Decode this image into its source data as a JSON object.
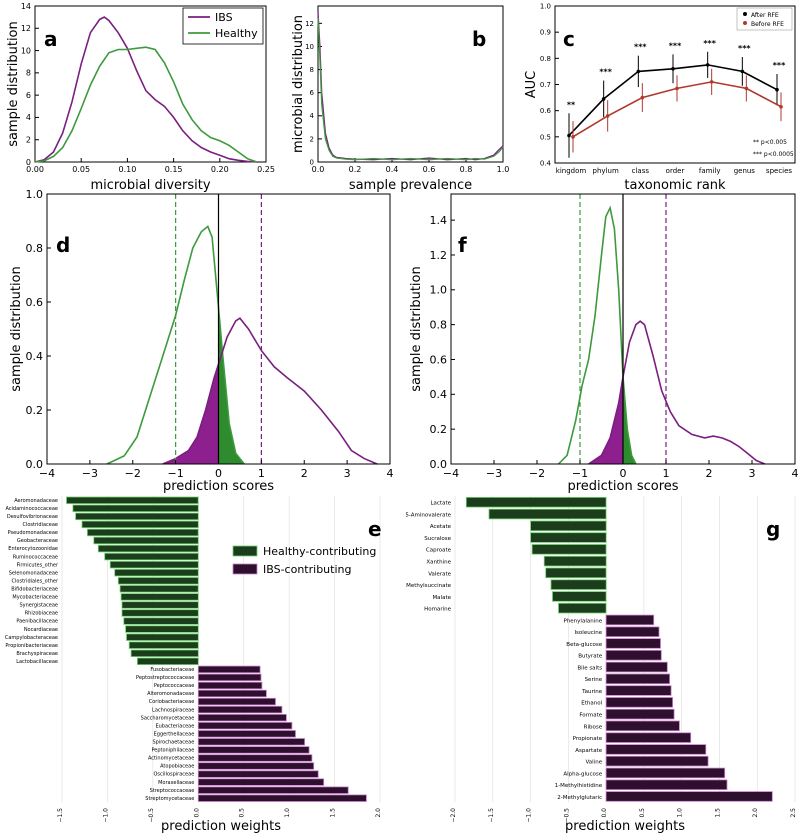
{
  "figure": {
    "colors": {
      "ibs": "#7a1f7f",
      "healthy": "#3d9a3d",
      "ibs_fill": "#8e1f8e",
      "healthy_fill": "#2e8b2e",
      "black": "#000000",
      "bar_healthy": "#1c3d1c",
      "bar_ibs": "#2e0f2e",
      "bar_healthy_edge": "#6fd06f",
      "bar_ibs_edge": "#c87fc8",
      "before_rfe": "#b0392c"
    },
    "panel_labels": {
      "a": "a",
      "b": "b",
      "c": "c",
      "d": "d",
      "e": "e",
      "f": "f",
      "g": "g"
    }
  },
  "chart_data": [
    {
      "id": "a",
      "type": "line",
      "xlabel": "microbial diversity",
      "ylabel": "sample distribution",
      "xlim": [
        0,
        0.25
      ],
      "ylim": [
        0,
        14
      ],
      "xticks": [
        "0.00",
        "0.05",
        "0.10",
        "0.15",
        "0.20",
        "0.25"
      ],
      "yticks": [
        "0",
        "2",
        "4",
        "6",
        "8",
        "10",
        "12",
        "14"
      ],
      "legend": [
        "IBS",
        "Healthy"
      ],
      "legend_position": "top-right",
      "series": [
        {
          "name": "IBS",
          "x": [
            0,
            0.01,
            0.02,
            0.03,
            0.04,
            0.05,
            0.06,
            0.07,
            0.075,
            0.08,
            0.09,
            0.1,
            0.11,
            0.12,
            0.13,
            0.14,
            0.15,
            0.16,
            0.17,
            0.18,
            0.19,
            0.2,
            0.21,
            0.22,
            0.23,
            0.24
          ],
          "y": [
            0,
            0.2,
            0.9,
            2.6,
            5.4,
            8.8,
            11.6,
            12.8,
            13.0,
            12.7,
            11.6,
            10.2,
            8.2,
            6.4,
            5.6,
            5.0,
            4.0,
            2.8,
            1.9,
            1.3,
            0.9,
            0.6,
            0.3,
            0.15,
            0.05,
            0
          ]
        },
        {
          "name": "Healthy",
          "x": [
            0,
            0.01,
            0.02,
            0.03,
            0.04,
            0.05,
            0.06,
            0.07,
            0.08,
            0.09,
            0.1,
            0.11,
            0.12,
            0.13,
            0.14,
            0.15,
            0.16,
            0.17,
            0.18,
            0.19,
            0.2,
            0.21,
            0.22,
            0.23,
            0.24
          ],
          "y": [
            0,
            0.1,
            0.5,
            1.3,
            2.8,
            4.8,
            6.9,
            8.6,
            9.8,
            10.1,
            10.1,
            10.2,
            10.3,
            10.1,
            8.9,
            7.2,
            5.2,
            3.8,
            2.8,
            2.2,
            1.9,
            1.5,
            0.9,
            0.3,
            0
          ]
        }
      ]
    },
    {
      "id": "b",
      "type": "line",
      "xlabel": "sample prevalence",
      "ylabel": "microbial distribution",
      "xlim": [
        0,
        1.0
      ],
      "ylim": [
        0,
        13.5
      ],
      "xticks": [
        "0.0",
        "0.2",
        "0.4",
        "0.6",
        "0.8",
        "1.0"
      ],
      "yticks": [
        "0",
        "2",
        "4",
        "6",
        "8",
        "10",
        "12"
      ],
      "series": [
        {
          "name": "IBS",
          "x": [
            0,
            0.01,
            0.02,
            0.04,
            0.06,
            0.08,
            0.1,
            0.15,
            0.2,
            0.3,
            0.4,
            0.5,
            0.6,
            0.7,
            0.8,
            0.85,
            0.9,
            0.95,
            0.98,
            1.0
          ],
          "y": [
            13,
            10,
            6,
            2.5,
            1.2,
            0.6,
            0.4,
            0.3,
            0.25,
            0.2,
            0.3,
            0.2,
            0.35,
            0.2,
            0.3,
            0.2,
            0.3,
            0.6,
            1.1,
            1.4
          ]
        },
        {
          "name": "Healthy",
          "x": [
            0,
            0.01,
            0.02,
            0.04,
            0.06,
            0.08,
            0.1,
            0.15,
            0.2,
            0.3,
            0.4,
            0.5,
            0.6,
            0.7,
            0.8,
            0.85,
            0.9,
            0.95,
            0.98,
            1.0
          ],
          "y": [
            12.5,
            9,
            5,
            2,
            1.0,
            0.5,
            0.35,
            0.25,
            0.2,
            0.3,
            0.2,
            0.3,
            0.2,
            0.3,
            0.2,
            0.3,
            0.25,
            0.5,
            0.9,
            1.3
          ]
        }
      ]
    },
    {
      "id": "c",
      "type": "line",
      "xlabel": "taxonomic rank",
      "ylabel": "AUC",
      "categories": [
        "kingdom",
        "phylum",
        "class",
        "order",
        "family",
        "genus",
        "species"
      ],
      "ylim": [
        0.4,
        1.0
      ],
      "yticks": [
        "0.4",
        "0.5",
        "0.6",
        "0.7",
        "0.8",
        "0.9",
        "1.0"
      ],
      "legend": [
        "After RFE",
        "Before RFE"
      ],
      "legend_position": "top-right",
      "significance": [
        "**",
        "***",
        "***",
        "***",
        "***",
        "***",
        "***"
      ],
      "annotations": [
        "** p<0.005",
        "*** p<0.0005"
      ],
      "series": [
        {
          "name": "After RFE",
          "values": [
            0.505,
            0.645,
            0.75,
            0.76,
            0.775,
            0.75,
            0.68
          ],
          "errors": [
            0.085,
            0.07,
            0.06,
            0.055,
            0.05,
            0.055,
            0.06
          ]
        },
        {
          "name": "Before RFE",
          "values": [
            0.5,
            0.58,
            0.65,
            0.685,
            0.71,
            0.685,
            0.615
          ],
          "errors": [
            0.06,
            0.06,
            0.055,
            0.05,
            0.05,
            0.05,
            0.055
          ]
        }
      ]
    },
    {
      "id": "d",
      "type": "area",
      "xlabel": "prediction scores",
      "ylabel": "sample distribution",
      "xlim": [
        -4,
        4
      ],
      "ylim": [
        0,
        1.0
      ],
      "xticks": [
        "−4",
        "−3",
        "−2",
        "−1",
        "0",
        "1",
        "2",
        "3",
        "4"
      ],
      "yticks": [
        "0.0",
        "0.2",
        "0.4",
        "0.6",
        "0.8",
        "1.0"
      ],
      "vlines": [
        {
          "x": -1,
          "series": "Healthy",
          "style": "dashed"
        },
        {
          "x": 0,
          "series": "threshold",
          "style": "solid"
        },
        {
          "x": 1,
          "series": "IBS",
          "style": "dashed"
        }
      ],
      "series": [
        {
          "name": "Healthy",
          "x": [
            -2.6,
            -2.2,
            -1.9,
            -1.6,
            -1.3,
            -1.0,
            -0.8,
            -0.6,
            -0.4,
            -0.25,
            -0.15,
            0,
            0.1,
            0.25,
            0.4,
            0.6
          ],
          "y": [
            0,
            0.03,
            0.1,
            0.25,
            0.4,
            0.55,
            0.68,
            0.8,
            0.86,
            0.88,
            0.84,
            0.58,
            0.4,
            0.15,
            0.04,
            0
          ]
        },
        {
          "name": "IBS",
          "x": [
            -1.3,
            -1.0,
            -0.7,
            -0.5,
            -0.3,
            -0.1,
            0,
            0.2,
            0.4,
            0.5,
            0.7,
            1.0,
            1.3,
            1.6,
            2.0,
            2.4,
            2.8,
            3.1,
            3.4,
            3.7
          ],
          "y": [
            0,
            0.02,
            0.05,
            0.1,
            0.2,
            0.32,
            0.37,
            0.47,
            0.53,
            0.54,
            0.5,
            0.42,
            0.36,
            0.32,
            0.27,
            0.2,
            0.12,
            0.05,
            0.02,
            0
          ]
        }
      ]
    },
    {
      "id": "f",
      "type": "area",
      "xlabel": "prediction scores",
      "ylabel": "sample distribution",
      "xlim": [
        -4,
        4
      ],
      "ylim": [
        0,
        1.55
      ],
      "xticks": [
        "−4",
        "−3",
        "−2",
        "−1",
        "0",
        "1",
        "2",
        "3",
        "4"
      ],
      "yticks": [
        "0.0",
        "0.2",
        "0.4",
        "0.6",
        "0.8",
        "1.0",
        "1.2",
        "1.4"
      ],
      "vlines": [
        {
          "x": -1,
          "series": "Healthy",
          "style": "dashed"
        },
        {
          "x": 0,
          "series": "threshold",
          "style": "solid"
        },
        {
          "x": 1,
          "series": "IBS",
          "style": "dashed"
        }
      ],
      "series": [
        {
          "name": "Healthy",
          "x": [
            -1.5,
            -1.3,
            -1.1,
            -0.95,
            -0.8,
            -0.65,
            -0.5,
            -0.4,
            -0.3,
            -0.2,
            -0.1,
            0,
            0.1,
            0.2,
            0.3
          ],
          "y": [
            0,
            0.05,
            0.25,
            0.45,
            0.6,
            0.85,
            1.2,
            1.42,
            1.47,
            1.35,
            1.0,
            0.5,
            0.2,
            0.05,
            0
          ]
        },
        {
          "name": "IBS",
          "x": [
            -0.8,
            -0.5,
            -0.3,
            -0.1,
            0,
            0.15,
            0.3,
            0.4,
            0.5,
            0.7,
            0.9,
            1.1,
            1.3,
            1.6,
            1.9,
            2.1,
            2.3,
            2.5,
            2.7,
            2.9,
            3.1,
            3.3
          ],
          "y": [
            0,
            0.05,
            0.15,
            0.35,
            0.5,
            0.7,
            0.8,
            0.82,
            0.8,
            0.62,
            0.42,
            0.3,
            0.22,
            0.17,
            0.15,
            0.16,
            0.15,
            0.13,
            0.1,
            0.06,
            0.02,
            0
          ]
        }
      ]
    },
    {
      "id": "e",
      "type": "bar",
      "orientation": "horizontal",
      "xlabel": "prediction weights",
      "xlim": [
        -1.5,
        2.0
      ],
      "xticks": [
        "−1.5",
        "−1.0",
        "−0.5",
        "0.0",
        "0.5",
        "1.0",
        "1.5",
        "2.0"
      ],
      "legend": [
        "Healthy-contributing",
        "IBS-contributing"
      ],
      "legend_position": "upper-right",
      "categories": [
        "Aeromonadaceae",
        "Acidaminococcaceae",
        "Desulfovibrionaceae",
        "Clostridiaceae",
        "Pseudomonadaceae",
        "Geobacteraceae",
        "Enterocytozoonidae",
        "Ruminococcaceae",
        "Firmicutes_other",
        "Selenomonadaceae",
        "Clostridiales_other",
        "Bifidobacteriaceae",
        "Mycobacteriaceae",
        "Synergistaceae",
        "Rhizobiaceae",
        "Paenibacillaceae",
        "Nocardiaceae",
        "Campylobacteraceae",
        "Propionibacteriaceae",
        "Brachyspiraceae",
        "Lactobacillaceae",
        "Fusobacteriaceae",
        "Peptostreptococcaceae",
        "Peptococcaceae",
        "Alteromonadaceae",
        "Coriobacteriaceae",
        "Lachnospiraceae",
        "Saccharomycetaceae",
        "Eubacteriaceae",
        "Eggerthellaceae",
        "Spirochaetaceae",
        "Peptoniphilaceae",
        "Actinomycetaceae",
        "Atopobiaceae",
        "Oscillospiraceae",
        "Moraxellaceae",
        "Streptococcaceae",
        "Streptomycetaceae"
      ],
      "values": [
        -1.45,
        -1.38,
        -1.35,
        -1.28,
        -1.22,
        -1.15,
        -1.1,
        -1.03,
        -0.97,
        -0.92,
        -0.88,
        -0.86,
        -0.85,
        -0.84,
        -0.84,
        -0.82,
        -0.8,
        -0.79,
        -0.76,
        -0.74,
        -0.67,
        0.68,
        0.69,
        0.7,
        0.75,
        0.85,
        0.92,
        0.97,
        1.03,
        1.07,
        1.17,
        1.22,
        1.25,
        1.27,
        1.32,
        1.38,
        1.65,
        1.85
      ]
    },
    {
      "id": "g",
      "type": "bar",
      "orientation": "horizontal",
      "xlabel": "prediction weights",
      "xlim": [
        -2.0,
        2.5
      ],
      "xticks": [
        "−2.0",
        "−1.5",
        "−1.0",
        "−0.5",
        "0.0",
        "0.5",
        "1.0",
        "1.5",
        "2.0",
        "2.5"
      ],
      "categories": [
        "Lactate",
        "5-Aminovalerate",
        "Acetate",
        "Sucralose",
        "Caproate",
        "Xanthine",
        "Valerate",
        "Methylsuccinate",
        "Malate",
        "Homarine",
        "Phenylalanine",
        "Isoleucine",
        "Beta-glucose",
        "Butyrate",
        "Bile salts",
        "Serine",
        "Taurine",
        "Ethanol",
        "Formate",
        "Ribose",
        "Propionate",
        "Aspartate",
        "Valine",
        "Alpha-glucose",
        "1-Methylhistidine",
        "2-Methylglutaric"
      ],
      "values": [
        -1.85,
        -1.55,
        -1.0,
        -1.0,
        -0.98,
        -0.82,
        -0.8,
        -0.73,
        -0.71,
        -0.63,
        0.63,
        0.7,
        0.72,
        0.73,
        0.81,
        0.84,
        0.86,
        0.88,
        0.9,
        0.97,
        1.12,
        1.32,
        1.35,
        1.57,
        1.6,
        2.2
      ]
    }
  ]
}
